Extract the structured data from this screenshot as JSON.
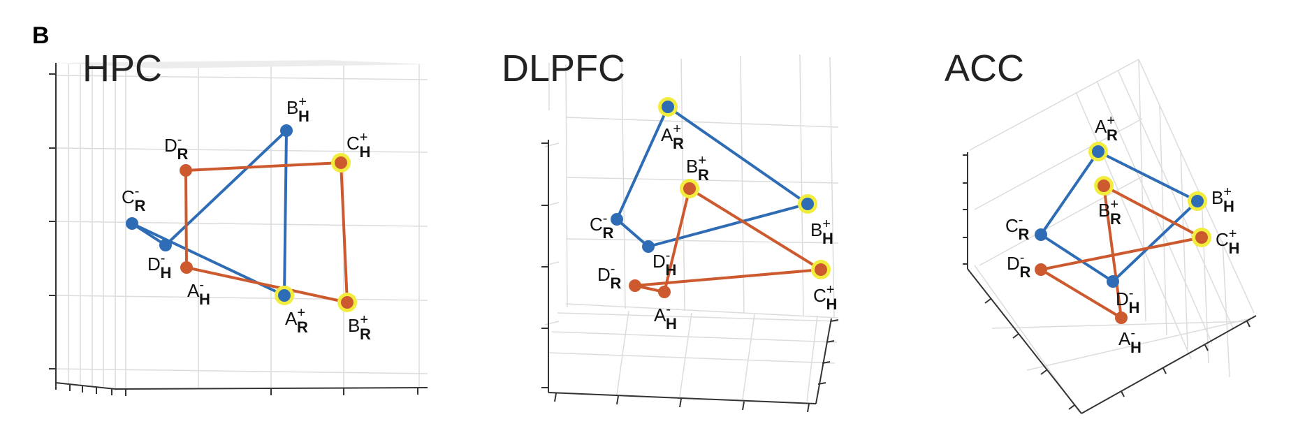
{
  "figure": {
    "panel_letter": "B",
    "colors": {
      "human": "#2e6db5",
      "rat": "#cc5a2e",
      "highlight": "#f2ec3c"
    },
    "panels": [
      {
        "id": "hpc",
        "title": "HPC",
        "nodes": [
          {
            "id": "A_H_minus",
            "letter": "A",
            "sub": "H",
            "sup": "-",
            "group": "rat",
            "highlight": false
          },
          {
            "id": "B_R_plus",
            "letter": "B",
            "sub": "R",
            "sup": "+",
            "group": "rat",
            "highlight": true
          },
          {
            "id": "C_H_plus",
            "letter": "C",
            "sub": "H",
            "sup": "+",
            "group": "rat",
            "highlight": true
          },
          {
            "id": "D_R_minus",
            "letter": "D",
            "sub": "R",
            "sup": "-",
            "group": "rat",
            "highlight": false
          },
          {
            "id": "B_H_plus",
            "letter": "B",
            "sub": "H",
            "sup": "+",
            "group": "human",
            "highlight": false
          },
          {
            "id": "A_R_plus",
            "letter": "A",
            "sub": "R",
            "sup": "+",
            "group": "human",
            "highlight": true
          },
          {
            "id": "D_H_minus",
            "letter": "D",
            "sub": "H",
            "sup": "-",
            "group": "human",
            "highlight": false
          },
          {
            "id": "C_R_minus",
            "letter": "C",
            "sub": "R",
            "sup": "-",
            "group": "human",
            "highlight": false
          }
        ]
      },
      {
        "id": "dlpfc",
        "title": "DLPFC",
        "nodes": [
          {
            "id": "A_R_plus",
            "letter": "A",
            "sub": "R",
            "sup": "+",
            "group": "human",
            "highlight": true
          },
          {
            "id": "B_H_plus",
            "letter": "B",
            "sub": "H",
            "sup": "+",
            "group": "human",
            "highlight": true
          },
          {
            "id": "D_H_minus",
            "letter": "D",
            "sub": "H",
            "sup": "-",
            "group": "human",
            "highlight": false
          },
          {
            "id": "C_R_minus",
            "letter": "C",
            "sub": "R",
            "sup": "-",
            "group": "human",
            "highlight": false
          },
          {
            "id": "B_R_plus",
            "letter": "B",
            "sub": "R",
            "sup": "+",
            "group": "rat",
            "highlight": true
          },
          {
            "id": "C_H_plus",
            "letter": "C",
            "sub": "H",
            "sup": "+",
            "group": "rat",
            "highlight": true
          },
          {
            "id": "A_H_minus",
            "letter": "A",
            "sub": "H",
            "sup": "-",
            "group": "rat",
            "highlight": false
          },
          {
            "id": "D_R_minus",
            "letter": "D",
            "sub": "R",
            "sup": "-",
            "group": "rat",
            "highlight": false
          }
        ]
      },
      {
        "id": "acc",
        "title": "ACC",
        "nodes": [
          {
            "id": "A_R_plus",
            "letter": "A",
            "sub": "R",
            "sup": "+",
            "group": "human",
            "highlight": true
          },
          {
            "id": "B_H_plus",
            "letter": "B",
            "sub": "H",
            "sup": "+",
            "group": "human",
            "highlight": true
          },
          {
            "id": "D_H_minus",
            "letter": "D",
            "sub": "H",
            "sup": "-",
            "group": "human",
            "highlight": false
          },
          {
            "id": "C_R_minus",
            "letter": "C",
            "sub": "R",
            "sup": "-",
            "group": "human",
            "highlight": false
          },
          {
            "id": "B_R_plus",
            "letter": "B",
            "sub": "R",
            "sup": "+",
            "group": "rat",
            "highlight": true
          },
          {
            "id": "C_H_plus",
            "letter": "C",
            "sub": "H",
            "sup": "+",
            "group": "rat",
            "highlight": true
          },
          {
            "id": "A_H_minus",
            "letter": "A",
            "sub": "H",
            "sup": "-",
            "group": "rat",
            "highlight": false
          },
          {
            "id": "D_R_minus",
            "letter": "D",
            "sub": "R",
            "sup": "-",
            "group": "rat",
            "highlight": false
          }
        ]
      }
    ]
  }
}
